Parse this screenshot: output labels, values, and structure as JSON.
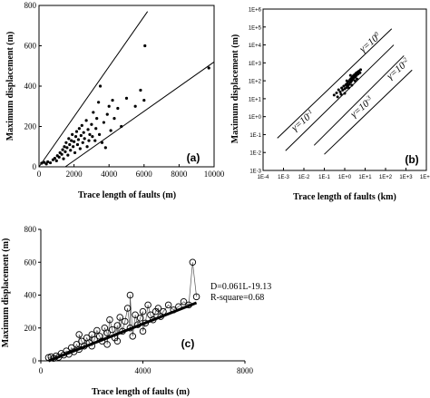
{
  "chart_data": [
    {
      "id": "a",
      "type": "scatter",
      "panel_label": "(a)",
      "xlabel": "Trace length of faults (m)",
      "ylabel": "Maximum displacement (m)",
      "xlim": [
        0,
        10000
      ],
      "ylim": [
        0,
        800
      ],
      "xticks": [
        0,
        2000,
        4000,
        6000,
        8000,
        10000
      ],
      "yticks": [
        0,
        200,
        400,
        600,
        800
      ],
      "grid": false,
      "points": [
        [
          150,
          18
        ],
        [
          300,
          22
        ],
        [
          420,
          14
        ],
        [
          500,
          25
        ],
        [
          650,
          20
        ],
        [
          800,
          35
        ],
        [
          900,
          42
        ],
        [
          1000,
          30
        ],
        [
          1050,
          55
        ],
        [
          1150,
          48
        ],
        [
          1200,
          70
        ],
        [
          1300,
          62
        ],
        [
          1350,
          85
        ],
        [
          1400,
          40
        ],
        [
          1450,
          100
        ],
        [
          1500,
          75
        ],
        [
          1550,
          120
        ],
        [
          1600,
          95
        ],
        [
          1650,
          58
        ],
        [
          1700,
          140
        ],
        [
          1750,
          110
        ],
        [
          1800,
          82
        ],
        [
          1850,
          130
        ],
        [
          1900,
          160
        ],
        [
          1950,
          100
        ],
        [
          2000,
          125
        ],
        [
          2050,
          70
        ],
        [
          2100,
          150
        ],
        [
          2150,
          175
        ],
        [
          2200,
          110
        ],
        [
          2250,
          135
        ],
        [
          2300,
          190
        ],
        [
          2350,
          90
        ],
        [
          2400,
          155
        ],
        [
          2450,
          205
        ],
        [
          2500,
          120
        ],
        [
          2550,
          170
        ],
        [
          2600,
          140
        ],
        [
          2700,
          230
        ],
        [
          2750,
          100
        ],
        [
          2800,
          185
        ],
        [
          2850,
          130
        ],
        [
          2900,
          160
        ],
        [
          3000,
          210
        ],
        [
          3050,
          150
        ],
        [
          3100,
          270
        ],
        [
          3200,
          130
        ],
        [
          3250,
          190
        ],
        [
          3300,
          240
        ],
        [
          3400,
          320
        ],
        [
          3450,
          160
        ],
        [
          3500,
          400
        ],
        [
          3600,
          120
        ],
        [
          3700,
          220
        ],
        [
          3800,
          95
        ],
        [
          3900,
          260
        ],
        [
          4000,
          300
        ],
        [
          4100,
          180
        ],
        [
          4200,
          330
        ],
        [
          4300,
          240
        ],
        [
          4500,
          290
        ],
        [
          4700,
          200
        ],
        [
          5000,
          340
        ],
        [
          5500,
          300
        ],
        [
          5800,
          380
        ],
        [
          6000,
          330
        ],
        [
          6050,
          600
        ],
        [
          9700,
          490
        ]
      ],
      "lines": [
        {
          "x": [
            0,
            6200
          ],
          "y": [
            0,
            770
          ]
        },
        {
          "x": [
            1500,
            10000
          ],
          "y": [
            0,
            520
          ]
        }
      ]
    },
    {
      "id": "b",
      "type": "scatter",
      "panel_label": "(b)",
      "xlabel": "Trace length of faults (km)",
      "ylabel": "Maximum displacement (m)",
      "log_x": true,
      "log_y": true,
      "xlim_exp": [
        -4,
        4
      ],
      "ylim_exp": [
        -3,
        6
      ],
      "xtick_labels": [
        "1E-4",
        "1E-3",
        "1E-2",
        "1E-1",
        "1E+0",
        "1E+1",
        "1E+2",
        "1E+3",
        "1E+4"
      ],
      "ytick_labels": [
        "1E-3",
        "1E-2",
        "1E-1",
        "1E+0",
        "1E+1",
        "1E+2",
        "1E+3",
        "1E+4",
        "1E+5",
        "1E+6"
      ],
      "grid": false,
      "gamma_labels": [
        "γ=10^0",
        "γ=10^-1",
        "γ=10^-2",
        "γ=10^-3"
      ],
      "reference_lines_exp": [
        {
          "x": [
            -3.3,
            2.3
          ],
          "y": [
            -1.2,
            4.9
          ]
        },
        {
          "x": [
            -2.9,
            2.4
          ],
          "y": [
            -1.9,
            4.0
          ]
        },
        {
          "x": [
            -1.5,
            2.9
          ],
          "y": [
            -1.6,
            3.4
          ]
        },
        {
          "x": [
            -1.0,
            3.3
          ],
          "y": [
            -2.1,
            2.6
          ]
        }
      ],
      "points_exp": [
        [
          -0.52,
          1.2
        ],
        [
          -0.4,
          1.32
        ],
        [
          -0.35,
          1.1
        ],
        [
          -0.3,
          1.5
        ],
        [
          -0.22,
          1.38
        ],
        [
          -0.18,
          1.25
        ],
        [
          -0.15,
          1.6
        ],
        [
          -0.1,
          1.48
        ],
        [
          -0.05,
          1.7
        ],
        [
          0.0,
          1.55
        ],
        [
          0.05,
          1.78
        ],
        [
          0.08,
          1.62
        ],
        [
          0.12,
          1.85
        ],
        [
          0.15,
          1.72
        ],
        [
          0.18,
          1.95
        ],
        [
          0.22,
          1.8
        ],
        [
          0.25,
          2.05
        ],
        [
          0.28,
          1.9
        ],
        [
          0.3,
          2.12
        ],
        [
          0.33,
          1.98
        ],
        [
          0.36,
          2.2
        ],
        [
          0.39,
          2.06
        ],
        [
          0.42,
          2.28
        ],
        [
          0.45,
          2.15
        ],
        [
          0.48,
          2.35
        ],
        [
          0.52,
          2.22
        ],
        [
          0.55,
          2.42
        ],
        [
          0.58,
          2.3
        ],
        [
          0.62,
          2.48
        ],
        [
          0.66,
          2.38
        ],
        [
          0.7,
          2.55
        ],
        [
          0.75,
          2.45
        ],
        [
          0.78,
          2.62
        ],
        [
          0.1,
          2.0
        ],
        [
          0.2,
          1.6
        ],
        [
          0.35,
          1.75
        ],
        [
          0.5,
          2.0
        ],
        [
          0.6,
          2.1
        ],
        [
          0.28,
          2.3
        ],
        [
          0.0,
          1.3
        ]
      ]
    },
    {
      "id": "c",
      "type": "scatter",
      "panel_label": "(c)",
      "xlabel": "Trace length of faults (m)",
      "ylabel": "Maximum displacement (m)",
      "xlim": [
        0,
        8000
      ],
      "ylim": [
        0,
        800
      ],
      "xticks": [
        0,
        4000,
        8000
      ],
      "yticks": [
        0,
        200,
        400,
        600,
        800
      ],
      "grid": false,
      "annotation_lines": [
        "D=0.061L-19.13",
        "R-square=0.68"
      ],
      "fit": {
        "slope": 0.061,
        "intercept": -19.13,
        "x": [
          300,
          6100
        ]
      },
      "points": [
        [
          300,
          20
        ],
        [
          400,
          25
        ],
        [
          500,
          15
        ],
        [
          600,
          30
        ],
        [
          700,
          22
        ],
        [
          800,
          45
        ],
        [
          900,
          35
        ],
        [
          1000,
          60
        ],
        [
          1100,
          40
        ],
        [
          1200,
          80
        ],
        [
          1300,
          55
        ],
        [
          1400,
          100
        ],
        [
          1500,
          70
        ],
        [
          1600,
          120
        ],
        [
          1700,
          90
        ],
        [
          1800,
          140
        ],
        [
          1900,
          110
        ],
        [
          2000,
          160
        ],
        [
          2100,
          130
        ],
        [
          2200,
          185
        ],
        [
          2300,
          150
        ],
        [
          2400,
          120
        ],
        [
          2500,
          200
        ],
        [
          2600,
          170
        ],
        [
          2700,
          250
        ],
        [
          2800,
          190
        ],
        [
          2900,
          140
        ],
        [
          3000,
          215
        ],
        [
          3100,
          265
        ],
        [
          3200,
          180
        ],
        [
          3300,
          240
        ],
        [
          3400,
          320
        ],
        [
          3500,
          200
        ],
        [
          3600,
          150
        ],
        [
          3700,
          280
        ],
        [
          3800,
          220
        ],
        [
          3900,
          260
        ],
        [
          4000,
          300
        ],
        [
          4100,
          230
        ],
        [
          4200,
          340
        ],
        [
          4300,
          280
        ],
        [
          4400,
          250
        ],
        [
          4500,
          300
        ],
        [
          4600,
          320
        ],
        [
          4700,
          270
        ],
        [
          4800,
          300
        ],
        [
          5000,
          340
        ],
        [
          5200,
          310
        ],
        [
          5400,
          330
        ],
        [
          5600,
          360
        ],
        [
          5800,
          340
        ],
        [
          5950,
          600
        ],
        [
          6100,
          390
        ],
        [
          2000,
          90
        ],
        [
          3000,
          120
        ],
        [
          1500,
          160
        ],
        [
          3500,
          400
        ],
        [
          2600,
          100
        ],
        [
          4000,
          180
        ]
      ]
    }
  ]
}
